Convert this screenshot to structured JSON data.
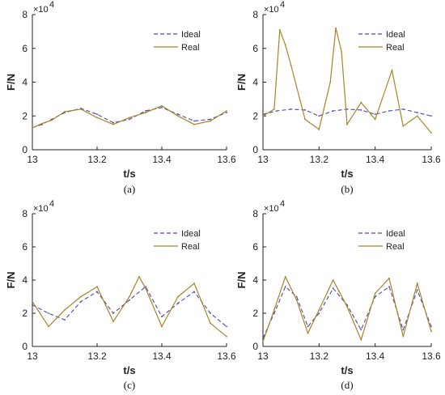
{
  "chart_data": [
    {
      "type": "line",
      "caption": "(a)",
      "xlabel": "t/s",
      "ylabel": "F/N",
      "exponent": "×10",
      "exponent_power": "4",
      "xlim": [
        13,
        13.6
      ],
      "ylim": [
        0,
        80000
      ],
      "xticks": [
        "13",
        "13.2",
        "13.4",
        "13.6"
      ],
      "yticks": [
        "0",
        "2",
        "4",
        "6",
        "8"
      ],
      "grid": false,
      "legend_position": "top-right",
      "series": [
        {
          "name": "Ideal",
          "style": "dashed",
          "color": "#4a4aa8",
          "x": [
            13.0,
            13.03,
            13.06,
            13.1,
            13.15,
            13.2,
            13.25,
            13.3,
            13.35,
            13.4,
            13.45,
            13.5,
            13.55,
            13.6
          ],
          "y": [
            13000,
            15000,
            18000,
            22000,
            24500,
            21000,
            16000,
            18000,
            23000,
            25000,
            21000,
            17000,
            18000,
            22000
          ]
        },
        {
          "name": "Real",
          "style": "solid",
          "color": "#a8842a",
          "x": [
            13.0,
            13.03,
            13.06,
            13.1,
            13.15,
            13.2,
            13.25,
            13.3,
            13.35,
            13.4,
            13.45,
            13.5,
            13.55,
            13.6
          ],
          "y": [
            13000,
            15500,
            17500,
            22500,
            24000,
            19000,
            15000,
            19000,
            22000,
            26000,
            20000,
            15000,
            17000,
            23000
          ]
        }
      ]
    },
    {
      "type": "line",
      "caption": "(b)",
      "xlabel": "t/s",
      "ylabel": "F/N",
      "exponent": "×10",
      "exponent_power": "4",
      "xlim": [
        13,
        13.6
      ],
      "ylim": [
        0,
        80000
      ],
      "xticks": [
        "13",
        "13.2",
        "13.4",
        "13.6"
      ],
      "yticks": [
        "0",
        "2",
        "4",
        "6",
        "8"
      ],
      "grid": false,
      "legend_position": "top-right",
      "series": [
        {
          "name": "Ideal",
          "style": "dashed",
          "color": "#4a4aa8",
          "x": [
            13.0,
            13.05,
            13.1,
            13.15,
            13.2,
            13.25,
            13.3,
            13.35,
            13.4,
            13.45,
            13.5,
            13.55,
            13.6
          ],
          "y": [
            21000,
            23000,
            24000,
            23500,
            20000,
            23000,
            24000,
            23500,
            21000,
            23000,
            24000,
            22000,
            20000
          ]
        },
        {
          "name": "Real",
          "style": "solid",
          "color": "#a8842a",
          "x": [
            13.0,
            13.04,
            13.06,
            13.08,
            13.1,
            13.15,
            13.2,
            13.24,
            13.26,
            13.28,
            13.3,
            13.35,
            13.4,
            13.46,
            13.5,
            13.55,
            13.6
          ],
          "y": [
            20000,
            24000,
            71000,
            62000,
            50000,
            18000,
            12000,
            40000,
            72000,
            58000,
            15000,
            28000,
            18000,
            47000,
            14000,
            20000,
            10000
          ]
        }
      ]
    },
    {
      "type": "line",
      "caption": "(c)",
      "xlabel": "t/s",
      "ylabel": "F/N",
      "exponent": "×10",
      "exponent_power": "4",
      "xlim": [
        13,
        13.6
      ],
      "ylim": [
        0,
        80000
      ],
      "xticks": [
        "13",
        "13.2",
        "13.4",
        "13.6"
      ],
      "yticks": [
        "0",
        "2",
        "4",
        "6",
        "8"
      ],
      "grid": false,
      "legend_position": "top-right",
      "series": [
        {
          "name": "Ideal",
          "style": "dashed",
          "color": "#4a4aa8",
          "x": [
            13.0,
            13.05,
            13.1,
            13.15,
            13.2,
            13.25,
            13.3,
            13.35,
            13.4,
            13.45,
            13.5,
            13.55,
            13.6
          ],
          "y": [
            25000,
            20000,
            16000,
            27000,
            33000,
            20000,
            28000,
            36000,
            18000,
            26000,
            33000,
            20000,
            12000
          ]
        },
        {
          "name": "Real",
          "style": "solid",
          "color": "#a8842a",
          "x": [
            13.0,
            13.05,
            13.1,
            13.15,
            13.2,
            13.25,
            13.3,
            13.33,
            13.35,
            13.4,
            13.45,
            13.5,
            13.55,
            13.6
          ],
          "y": [
            27000,
            12000,
            22000,
            30000,
            36000,
            15000,
            30000,
            42000,
            35000,
            12000,
            30000,
            38000,
            14000,
            6000
          ]
        }
      ]
    },
    {
      "type": "line",
      "caption": "(d)",
      "xlabel": "t/s",
      "ylabel": "F/N",
      "exponent": "×10",
      "exponent_power": "4",
      "xlim": [
        13,
        13.6
      ],
      "ylim": [
        0,
        80000
      ],
      "xticks": [
        "13",
        "13.2",
        "13.4",
        "13.6"
      ],
      "yticks": [
        "0",
        "2",
        "4",
        "6",
        "8"
      ],
      "grid": false,
      "legend_position": "top-right",
      "series": [
        {
          "name": "Ideal",
          "style": "dashed",
          "color": "#4a4aa8",
          "x": [
            13.0,
            13.04,
            13.08,
            13.12,
            13.16,
            13.2,
            13.25,
            13.3,
            13.35,
            13.4,
            13.45,
            13.5,
            13.55,
            13.6
          ],
          "y": [
            5000,
            20000,
            36000,
            30000,
            12000,
            20000,
            35000,
            25000,
            10000,
            30000,
            36000,
            10000,
            34000,
            12000
          ]
        },
        {
          "name": "Real",
          "style": "solid",
          "color": "#a8842a",
          "x": [
            13.0,
            13.04,
            13.08,
            13.12,
            13.16,
            13.2,
            13.25,
            13.3,
            13.35,
            13.4,
            13.45,
            13.5,
            13.55,
            13.6
          ],
          "y": [
            3000,
            22000,
            42000,
            28000,
            8000,
            22000,
            40000,
            24000,
            4000,
            32000,
            41000,
            6000,
            38000,
            9000
          ]
        }
      ]
    }
  ]
}
